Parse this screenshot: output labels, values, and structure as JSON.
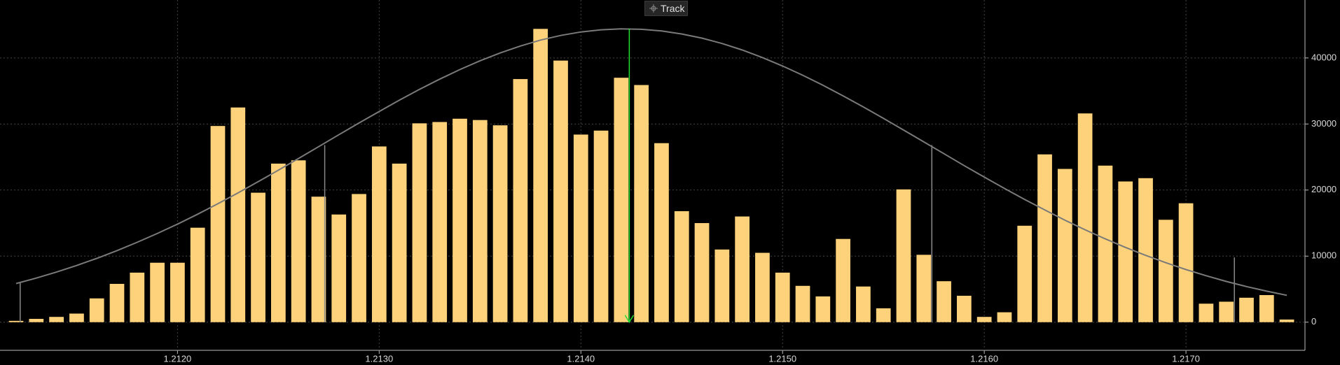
{
  "chart_data": {
    "type": "histogram",
    "bins": [
      1.21115,
      1.21125,
      1.21135,
      1.21145,
      1.21155,
      1.21165,
      1.21175,
      1.21185,
      1.21195,
      1.21205,
      1.21215,
      1.21225,
      1.21235,
      1.21245,
      1.21255,
      1.21265,
      1.21275,
      1.21285,
      1.21295,
      1.21305,
      1.21315,
      1.21325,
      1.21335,
      1.21345,
      1.21355,
      1.21365,
      1.21375,
      1.21385,
      1.21395,
      1.21405,
      1.21415,
      1.21425,
      1.21435,
      1.21445,
      1.21455,
      1.21465,
      1.21475,
      1.21485,
      1.21495,
      1.21505,
      1.21515,
      1.21525,
      1.21535,
      1.21545,
      1.21555,
      1.21565,
      1.21575,
      1.21585,
      1.21595,
      1.21605,
      1.21615,
      1.21625,
      1.21635,
      1.21645,
      1.21655,
      1.21665,
      1.21675,
      1.21685,
      1.21695,
      1.21705,
      1.21715,
      1.21725,
      1.21735,
      1.21745,
      1.21755
    ],
    "values": [
      200,
      500,
      800,
      1300,
      3600,
      5800,
      7500,
      9000,
      9000,
      14300,
      29700,
      32500,
      19600,
      24000,
      24500,
      19000,
      16300,
      19400,
      26600,
      24000,
      30100,
      30300,
      30800,
      30600,
      29800,
      36800,
      44400,
      39600,
      28400,
      29000,
      37000,
      35900,
      27100,
      16800,
      15000,
      11000,
      16000,
      10500,
      7500,
      5500,
      3900,
      12600,
      5400,
      2100,
      20100,
      10200,
      6200,
      4000,
      800,
      1500,
      14600,
      25400,
      23200,
      31600,
      23700,
      21300,
      21800,
      15500,
      18000,
      2800,
      3100,
      3700,
      4100,
      400
    ],
    "color": "#fed27a",
    "curve": {
      "color": "#7a7a7a",
      "x": [
        1.2112,
        1.2113,
        1.2114,
        1.2115,
        1.2116,
        1.2117,
        1.2118,
        1.2119,
        1.212,
        1.2121,
        1.2122,
        1.2123,
        1.2124,
        1.2125,
        1.2126,
        1.2127,
        1.2128,
        1.2129,
        1.213,
        1.2131,
        1.2132,
        1.2133,
        1.2134,
        1.2135,
        1.2136,
        1.2137,
        1.2138,
        1.2139,
        1.214,
        1.2141,
        1.2142,
        1.2143,
        1.2144,
        1.2145,
        1.2146,
        1.2147,
        1.2148,
        1.2149,
        1.215,
        1.2151,
        1.2152,
        1.2153,
        1.2154,
        1.2155,
        1.2156,
        1.2157,
        1.2158,
        1.2159,
        1.216,
        1.2161,
        1.2162,
        1.2163,
        1.2164,
        1.2165,
        1.2166,
        1.2167,
        1.2168,
        1.2169,
        1.217,
        1.2171,
        1.2172,
        1.2173,
        1.2174,
        1.2175
      ],
      "values": [
        5850,
        6670,
        7580,
        8580,
        9660,
        10830,
        12090,
        13430,
        14850,
        16350,
        17930,
        19570,
        21270,
        23010,
        24780,
        26570,
        28370,
        30150,
        31890,
        33600,
        35240,
        36790,
        38240,
        39570,
        40760,
        41810,
        42700,
        43400,
        43930,
        44260,
        44400,
        44340,
        44080,
        43630,
        43000,
        42190,
        41200,
        40060,
        38780,
        37380,
        35870,
        34260,
        32590,
        30850,
        29080,
        27290,
        25500,
        23710,
        21960,
        20240,
        18580,
        16980,
        15440,
        13990,
        12610,
        11320,
        10110,
        9000,
        7970,
        7030,
        6170,
        5390,
        4690,
        4070
      ]
    },
    "sigma_lines": {
      "color": "#8a8a8a",
      "x": [
        1.21122,
        1.21273,
        1.21574,
        1.21724
      ],
      "values": [
        5900,
        26800,
        26800,
        9800
      ]
    },
    "mean_line": {
      "color": "#22dd33",
      "x": 1.21424
    },
    "xlim": [
      1.21112,
      1.21759
    ],
    "ylim": [
      -4260,
      48770
    ],
    "xticks": [
      {
        "value": 1.212,
        "label": "1.2120"
      },
      {
        "value": 1.213,
        "label": "1.2130"
      },
      {
        "value": 1.214,
        "label": "1.2140"
      },
      {
        "value": 1.215,
        "label": "1.2150"
      },
      {
        "value": 1.216,
        "label": "1.2160"
      },
      {
        "value": 1.217,
        "label": "1.2170"
      }
    ],
    "yticks": [
      0,
      10000,
      20000,
      30000,
      40000
    ],
    "grid": true
  },
  "controls": {
    "track": "Track"
  }
}
